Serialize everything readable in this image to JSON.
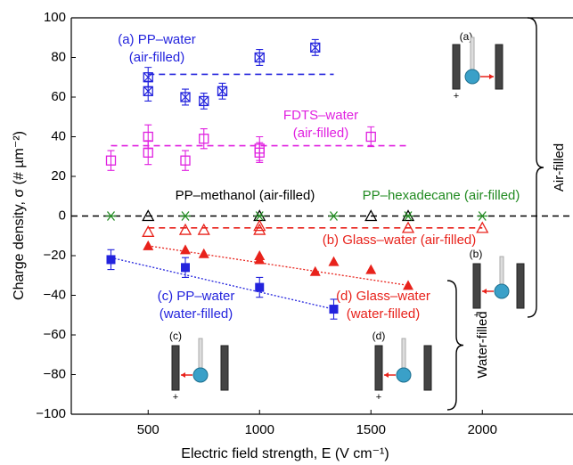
{
  "chart_data": {
    "type": "scatter",
    "x_label": "Electric field strength, E (V cm⁻¹)",
    "y_label": "Charge density, σ (# µm⁻²)",
    "xlim": [
      155,
      2407
    ],
    "ylim": [
      -100,
      100
    ],
    "xticks": [
      500,
      1000,
      1500,
      2000
    ],
    "yticks": [
      {
        "value": -100,
        "label": "−100"
      },
      {
        "value": -80,
        "label": "−80"
      },
      {
        "value": -60,
        "label": "−60"
      },
      {
        "value": -40,
        "label": "−40"
      },
      {
        "value": -20,
        "label": "−20"
      },
      0,
      20,
      40,
      60,
      80,
      100
    ],
    "series": [
      {
        "name_lines": [
          "(a) PP–water",
          "(air-filled)"
        ],
        "color": "#2323dd",
        "marker": "square-x",
        "x": [
          500,
          500,
          667,
          750,
          833,
          1000,
          1250
        ],
        "values": [
          70,
          63,
          60,
          58,
          63,
          80,
          85
        ],
        "errors": [
          5,
          5,
          4,
          4,
          4,
          4,
          4
        ]
      },
      {
        "name_lines": [
          "FDTS–water",
          "(air-filled)"
        ],
        "color": "#e020e0",
        "marker": "open-square",
        "x": [
          333,
          500,
          500,
          667,
          750,
          1000,
          1000,
          1500
        ],
        "values": [
          28,
          40,
          32,
          28,
          39,
          34,
          32,
          40
        ],
        "errors": [
          5,
          6,
          6,
          5,
          5,
          6,
          5,
          5
        ]
      },
      {
        "name_lines": [
          "PP–methanol (air-filled)"
        ],
        "color": "#000000",
        "marker": "open-triangle",
        "x": [
          500,
          1000,
          1500,
          1667
        ],
        "values": [
          0,
          0,
          0,
          0
        ]
      },
      {
        "name_lines": [
          "PP–hexadecane (air-filled)"
        ],
        "color": "#228b22",
        "marker": "asterisk",
        "x": [
          333,
          667,
          1000,
          1333,
          1667,
          2000
        ],
        "values": [
          0,
          0,
          0,
          0,
          0,
          0
        ]
      },
      {
        "name_lines": [
          "(b) Glass–water (air-filled)"
        ],
        "color": "#e8221b",
        "marker": "open-triangle",
        "x": [
          500,
          667,
          750,
          1000,
          1000,
          1667,
          2000
        ],
        "values": [
          -8,
          -7,
          -7,
          -7,
          -5,
          -6,
          -6
        ]
      },
      {
        "name_lines": [
          "(d) Glass–water",
          "(water-filled)"
        ],
        "color": "#e8221b",
        "marker": "filled-triangle",
        "x": [
          500,
          667,
          750,
          1000,
          1000,
          1250,
          1333,
          1500,
          1667
        ],
        "values": [
          -15,
          -17,
          -19,
          -20,
          -22,
          -28,
          -23,
          -27,
          -35
        ]
      },
      {
        "name_lines": [
          "(c) PP–water",
          "(water-filled)"
        ],
        "color": "#2323dd",
        "marker": "filled-square",
        "x": [
          333,
          667,
          1000,
          1333
        ],
        "values": [
          -22,
          -26,
          -36,
          -47
        ],
        "errors": [
          5,
          5,
          5,
          5
        ]
      }
    ],
    "fit_lines": [
      {
        "x": [
          500,
          1333
        ],
        "y": [
          71.5,
          71.5
        ],
        "color": "#2323dd",
        "style": "dashed"
      },
      {
        "x": [
          333,
          1667
        ],
        "y": [
          35.5,
          35.5
        ],
        "color": "#e020e0",
        "style": "dashed"
      },
      {
        "x": [
          155,
          2407
        ],
        "y": [
          0,
          0
        ],
        "color": "#000000",
        "style": "dashed"
      },
      {
        "x": [
          500,
          2000
        ],
        "y": [
          -6,
          -6
        ],
        "color": "#e8221b",
        "style": "dashed"
      },
      {
        "x": [
          500,
          1667
        ],
        "y": [
          -15,
          -35
        ],
        "color": "#e8221b",
        "style": "dotted"
      },
      {
        "x": [
          333,
          1333
        ],
        "y": [
          -21,
          -47
        ],
        "color": "#2323dd",
        "style": "dotted"
      }
    ],
    "brackets": [
      "Air-filled",
      "Water-filled"
    ],
    "insets": [
      {
        "label": "(a)",
        "sign": "+"
      },
      {
        "label": "(b)",
        "sign": "+"
      },
      {
        "label": "(c)",
        "sign": "+"
      },
      {
        "label": "(d)",
        "sign": "+"
      }
    ]
  }
}
